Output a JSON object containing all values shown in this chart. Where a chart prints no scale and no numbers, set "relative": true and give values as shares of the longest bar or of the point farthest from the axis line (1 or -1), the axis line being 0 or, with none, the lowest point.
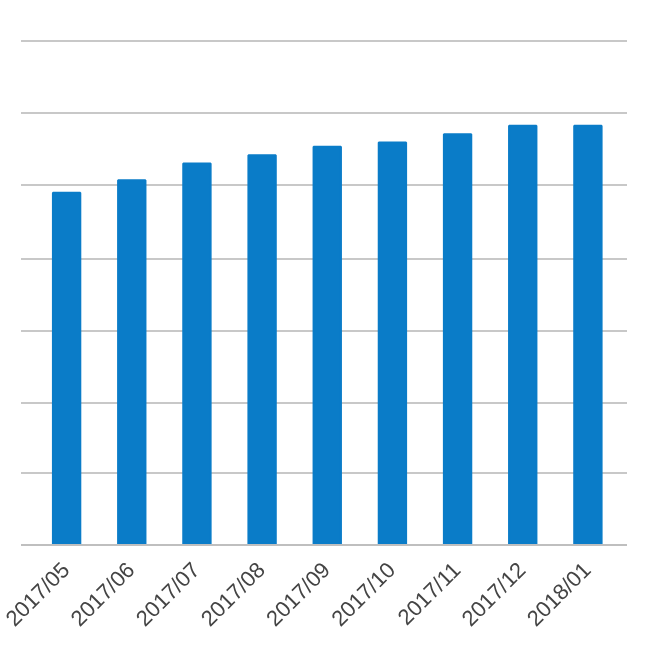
{
  "chart_data": {
    "type": "bar",
    "relative": true,
    "categories": [
      "2017/05",
      "2017/06",
      "2017/07",
      "2017/08",
      "2017/09",
      "2017/10",
      "2017/11",
      "2017/12",
      "2018/01"
    ],
    "values": [
      0.84,
      0.87,
      0.91,
      0.93,
      0.95,
      0.96,
      0.98,
      1,
      1
    ],
    "color": "#0a7cc8",
    "grid": "y"
  }
}
